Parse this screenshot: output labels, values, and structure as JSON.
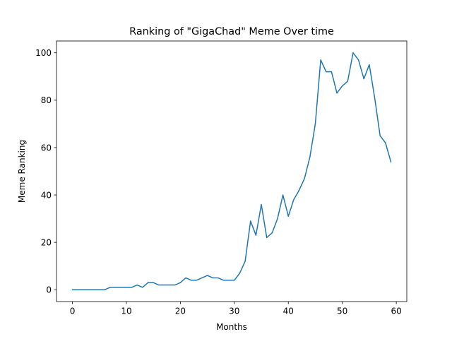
{
  "chart_data": {
    "type": "line",
    "title": "Ranking of \"GigaChad\" Meme Over time",
    "xlabel": "Months",
    "ylabel": "Meme Ranking",
    "xlim": [
      -2.95,
      61.95
    ],
    "ylim": [
      -5,
      105
    ],
    "xticks": [
      0,
      10,
      20,
      30,
      40,
      50,
      60
    ],
    "yticks": [
      0,
      20,
      40,
      60,
      80,
      100
    ],
    "grid": false,
    "colors": {
      "series": "#1f77b4"
    },
    "series": [
      {
        "x": [
          0,
          1,
          2,
          3,
          4,
          5,
          6,
          7,
          8,
          9,
          10,
          11,
          12,
          13,
          14,
          15,
          16,
          17,
          18,
          19,
          20,
          21,
          22,
          23,
          24,
          25,
          26,
          27,
          28,
          29,
          30,
          31,
          32,
          33,
          34,
          35,
          36,
          37,
          38,
          39,
          40,
          41,
          42,
          43,
          44,
          45,
          46,
          47,
          48,
          49,
          50,
          51,
          52,
          53,
          54,
          55,
          56,
          57,
          58,
          59
        ],
        "values": [
          0,
          0,
          0,
          0,
          0,
          0,
          0,
          1,
          1,
          1,
          1,
          1,
          2,
          1,
          3,
          3,
          2,
          2,
          2,
          2,
          3,
          5,
          4,
          4,
          5,
          6,
          5,
          5,
          4,
          4,
          4,
          7,
          12,
          29,
          23,
          36,
          22,
          24,
          30,
          40,
          31,
          38,
          42,
          47,
          56,
          70,
          97,
          92,
          92,
          83,
          86,
          88,
          100,
          97,
          89,
          95,
          81,
          65,
          62,
          54
        ]
      }
    ]
  }
}
